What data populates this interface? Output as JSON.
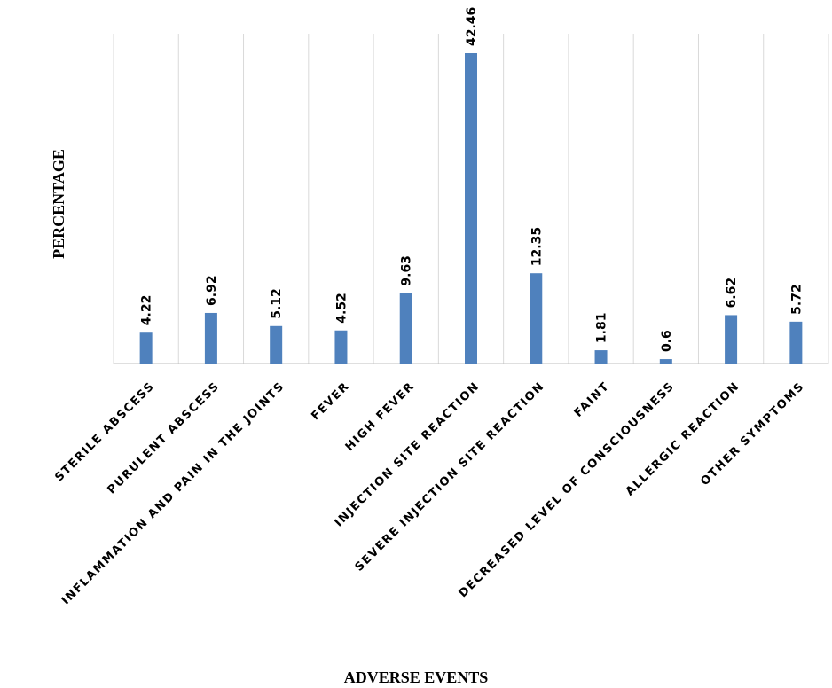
{
  "chart_data": {
    "type": "bar",
    "title": "",
    "xlabel": "ADVERSE EVENTS",
    "ylabel": "PERCENTAGE",
    "categories": [
      "STERILE ABSCESS",
      "PURULENT ABSCESS",
      "INFLAMMATION AND PAIN IN THE JOINTS",
      "FEVER",
      "HIGH FEVER",
      "INJECTION SITE REACTION",
      "SEVERE  INJECTION SITE REACTION",
      "FAINT",
      "DECREASED LEVEL OF CONSCIOUSNESS",
      "ALLERGIC REACTION",
      "OTHER SYMPTOMS"
    ],
    "values": [
      4.22,
      6.92,
      5.12,
      4.52,
      9.63,
      42.46,
      12.35,
      1.81,
      0.6,
      6.62,
      5.72
    ],
    "data_labels": [
      "4.22",
      "6.92",
      "5.12",
      "4.52",
      "9.63",
      "42.46",
      "12.35",
      "1.81",
      "0.6",
      "6.62",
      "5.72"
    ],
    "ylim": [
      0,
      45
    ],
    "bar_color": "#4f81bd",
    "grid": "vertical separators between categories",
    "legend": "none"
  }
}
